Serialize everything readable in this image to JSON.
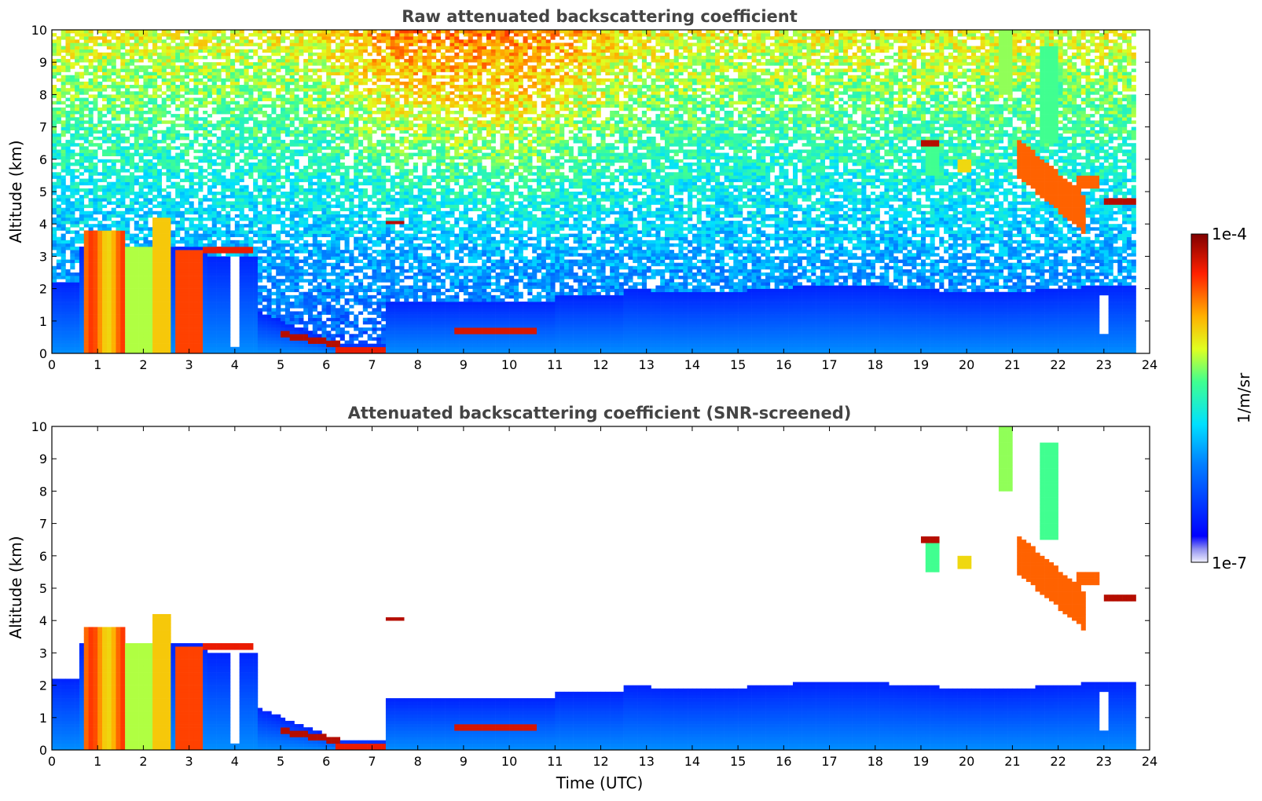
{
  "chart_data": [
    {
      "type": "heatmap",
      "title": "Raw attenuated backscattering coefficient",
      "xlabel": "",
      "ylabel": "Altitude (km)",
      "xlim": [
        0,
        24
      ],
      "ylim": [
        0,
        10
      ],
      "xticks": [
        "0",
        "1",
        "2",
        "3",
        "4",
        "5",
        "6",
        "7",
        "8",
        "9",
        "10",
        "11",
        "12",
        "13",
        "14",
        "15",
        "16",
        "17",
        "18",
        "19",
        "20",
        "21",
        "22",
        "23",
        "24"
      ],
      "yticks": [
        "0",
        "1",
        "2",
        "3",
        "4",
        "5",
        "6",
        "7",
        "8",
        "9",
        "10"
      ],
      "screened": false,
      "data_end_time": 23.7
    },
    {
      "type": "heatmap",
      "title": "Attenuated backscattering coefficient (SNR-screened)",
      "xlabel": "Time (UTC)",
      "ylabel": "Altitude (km)",
      "xlim": [
        0,
        24
      ],
      "ylim": [
        0,
        10
      ],
      "xticks": [
        "0",
        "1",
        "2",
        "3",
        "4",
        "5",
        "6",
        "7",
        "8",
        "9",
        "10",
        "11",
        "12",
        "13",
        "14",
        "15",
        "16",
        "17",
        "18",
        "19",
        "20",
        "21",
        "22",
        "23",
        "24"
      ],
      "yticks": [
        "0",
        "1",
        "2",
        "3",
        "4",
        "5",
        "6",
        "7",
        "8",
        "9",
        "10"
      ],
      "screened": true,
      "data_end_time": 23.7
    }
  ],
  "colorbar": {
    "label": "1/m/sr",
    "max_label": "1e-4",
    "min_label": "1e-7",
    "scale": "log",
    "range": [
      1e-07,
      0.0001
    ],
    "colormap": "jet"
  }
}
